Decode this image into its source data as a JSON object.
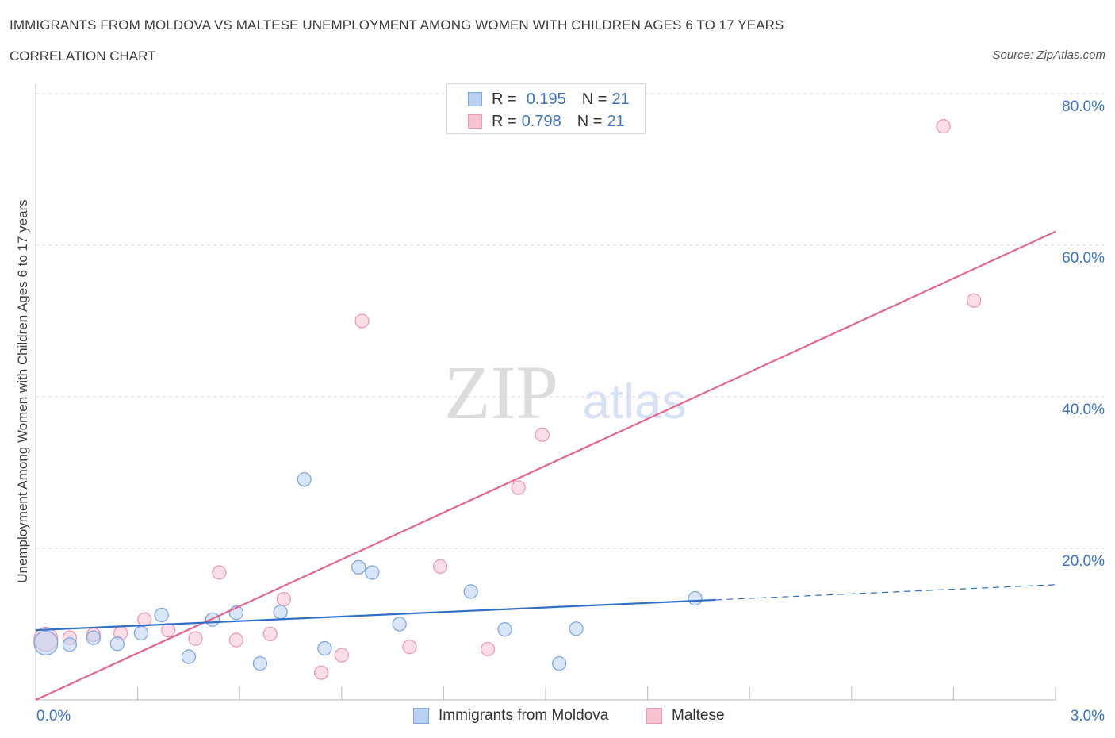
{
  "header": {
    "title": "IMMIGRANTS FROM MOLDOVA VS MALTESE UNEMPLOYMENT AMONG WOMEN WITH CHILDREN AGES 6 TO 17 YEARS",
    "subtitle": "CORRELATION CHART",
    "source": "Source: ZipAtlas.com"
  },
  "legend": {
    "series1": {
      "r_label": "R =",
      "r_value": "0.195",
      "n_label": "N =",
      "n_value": "21"
    },
    "series2": {
      "r_label": "R =",
      "r_value": "0.798",
      "n_label": "N =",
      "n_value": "21"
    }
  },
  "bottom_legend": {
    "series1": "Immigrants from Moldova",
    "series2": "Maltese"
  },
  "watermark": {
    "zip": "ZIP",
    "atlas": "atlas"
  },
  "colors": {
    "blue_fill": "#b9d1f3",
    "blue_stroke": "#7fa7e0",
    "blue_line": "#2f6fcb",
    "pink_fill": "#f7c3d1",
    "pink_stroke": "#ec9bb3",
    "pink_line": "#e4668f",
    "axis_text": "#3a72c8",
    "grid": "#dddddd"
  },
  "chart_data": {
    "type": "scatter",
    "title": "IMMIGRANTS FROM MOLDOVA VS MALTESE UNEMPLOYMENT AMONG WOMEN WITH CHILDREN AGES 6 TO 17 YEARS",
    "xlabel": "",
    "ylabel": "Unemployment Among Women with Children Ages 6 to 17 years",
    "xlim": [
      0,
      3.0
    ],
    "ylim": [
      0,
      80
    ],
    "x_tick_labels": [
      "0.0%",
      "3.0%"
    ],
    "y_ticks": [
      20,
      40,
      60,
      80
    ],
    "y_tick_labels": [
      "20.0%",
      "40.0%",
      "60.0%",
      "80.0%"
    ],
    "series": [
      {
        "name": "Immigrants from Moldova",
        "points": [
          {
            "x": 0.03,
            "y": 7.5,
            "size": "large"
          },
          {
            "x": 0.1,
            "y": 7.3
          },
          {
            "x": 0.17,
            "y": 8.2
          },
          {
            "x": 0.24,
            "y": 7.4
          },
          {
            "x": 0.31,
            "y": 8.8
          },
          {
            "x": 0.37,
            "y": 11.2
          },
          {
            "x": 0.45,
            "y": 5.7
          },
          {
            "x": 0.52,
            "y": 10.6
          },
          {
            "x": 0.59,
            "y": 11.5
          },
          {
            "x": 0.66,
            "y": 4.8
          },
          {
            "x": 0.72,
            "y": 11.6
          },
          {
            "x": 0.79,
            "y": 29.1
          },
          {
            "x": 0.85,
            "y": 6.8
          },
          {
            "x": 0.95,
            "y": 17.5
          },
          {
            "x": 0.99,
            "y": 16.8
          },
          {
            "x": 1.07,
            "y": 10.0
          },
          {
            "x": 1.28,
            "y": 14.3
          },
          {
            "x": 1.38,
            "y": 9.3
          },
          {
            "x": 1.54,
            "y": 4.8
          },
          {
            "x": 1.59,
            "y": 9.4
          },
          {
            "x": 1.94,
            "y": 13.4
          }
        ],
        "trend": {
          "x0": 0.0,
          "y0": 9.2,
          "x1": 2.0,
          "y1": 13.2,
          "x_dash_end": 3.0,
          "y_dash_end": 15.2
        }
      },
      {
        "name": "Maltese",
        "points": [
          {
            "x": 0.03,
            "y": 8.0,
            "size": "large"
          },
          {
            "x": 0.1,
            "y": 8.2
          },
          {
            "x": 0.17,
            "y": 8.6
          },
          {
            "x": 0.25,
            "y": 8.8
          },
          {
            "x": 0.32,
            "y": 10.6
          },
          {
            "x": 0.39,
            "y": 9.2
          },
          {
            "x": 0.47,
            "y": 8.1
          },
          {
            "x": 0.54,
            "y": 16.8
          },
          {
            "x": 0.59,
            "y": 7.9
          },
          {
            "x": 0.69,
            "y": 8.7
          },
          {
            "x": 0.73,
            "y": 13.3
          },
          {
            "x": 0.84,
            "y": 3.6
          },
          {
            "x": 0.9,
            "y": 5.9
          },
          {
            "x": 0.96,
            "y": 50.0
          },
          {
            "x": 1.1,
            "y": 7.0
          },
          {
            "x": 1.19,
            "y": 17.6
          },
          {
            "x": 1.33,
            "y": 6.7
          },
          {
            "x": 1.42,
            "y": 28.0
          },
          {
            "x": 1.49,
            "y": 35.0
          },
          {
            "x": 2.67,
            "y": 75.7
          },
          {
            "x": 2.76,
            "y": 52.7
          }
        ],
        "trend": {
          "x0": 0.0,
          "y0": 0.0,
          "x1": 3.0,
          "y1": 61.8
        }
      }
    ]
  }
}
